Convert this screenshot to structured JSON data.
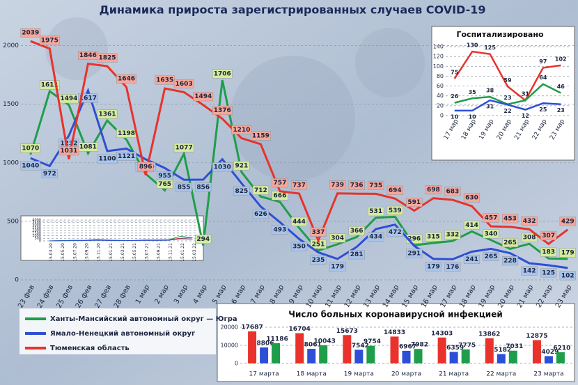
{
  "chart_data": [
    {
      "type": "line",
      "title": "Динамика прироста зарегистрированных случаев COVID-19",
      "categories": [
        "23 фев",
        "24 фев",
        "25 фев",
        "26 фев",
        "27 фев",
        "28 фев",
        "1 мар",
        "2 мар",
        "3 мар",
        "4 мар",
        "5 мар",
        "6 мар",
        "7 мар",
        "8 мар",
        "9 мар",
        "10 мар",
        "11 мар",
        "12 мар",
        "13 мар",
        "14 мар",
        "15 мар",
        "16 мар",
        "17 мар",
        "18 мар",
        "19 мар",
        "20 мар",
        "21 мар",
        "22 мар",
        "23 мар"
      ],
      "ylim": [
        0,
        2200
      ],
      "yticks": [
        0,
        500,
        1000,
        1500,
        2000
      ],
      "grid": true,
      "legend": "bottom-left",
      "data_labels": true,
      "series": [
        {
          "name": "Ханты-Мансийский автономный округ — Югра",
          "color": "#1e9e4a",
          "label_color": "#d5eb9f",
          "values": [
            1070,
            1611,
            1494,
            1081,
            1361,
            1198,
            906,
            765,
            1077,
            294,
            1706,
            921,
            712,
            666,
            444,
            251,
            304,
            366,
            531,
            539,
            296,
            315,
            332,
            414,
            340,
            265,
            308,
            183,
            179
          ]
        },
        {
          "name": "Ямало-Ненецкий автономный округ",
          "color": "#2d4fd6",
          "label_color": "#a9c4ea",
          "values": [
            1040,
            972,
            1232,
            1617,
            1100,
            1121,
            1030,
            955,
            855,
            856,
            1030,
            825,
            626,
            493,
            350,
            235,
            179,
            281,
            434,
            472,
            291,
            179,
            176,
            241,
            265,
            228,
            142,
            125,
            102
          ]
        },
        {
          "name": "Тюменская область",
          "color": "#e8322b",
          "label_color": "#f4a79b",
          "values": [
            2039,
            1975,
            1031,
            1846,
            1825,
            1646,
            896,
            1635,
            1603,
            1494,
            1376,
            1210,
            1159,
            757,
            737,
            337,
            739,
            736,
            735,
            694,
            591,
            698,
            683,
            630,
            457,
            453,
            432,
            307,
            429
          ]
        }
      ]
    },
    {
      "type": "line",
      "title": "Госпитализировано",
      "categories": [
        "17 мар",
        "18 мар",
        "19 мар",
        "20 мар",
        "21 мар",
        "22 мар",
        "23 мар"
      ],
      "ylim": [
        0,
        140
      ],
      "yticks": [
        0,
        20,
        40,
        60,
        80,
        100,
        120,
        140
      ],
      "grid": true,
      "data_labels": true,
      "series": [
        {
          "color": "#e8322b",
          "values": [
            75,
            130,
            125,
            59,
            31,
            97,
            102
          ]
        },
        {
          "color": "#1e9e4a",
          "values": [
            26,
            35,
            38,
            23,
            31,
            64,
            46
          ]
        },
        {
          "color": "#2d4fd6",
          "values": [
            10,
            10,
            31,
            22,
            12,
            25,
            23
          ]
        }
      ]
    },
    {
      "type": "line",
      "categories": [
        "15.03.20",
        "15.05.20",
        "15.07.20",
        "15.09.20",
        "15.11.20",
        "15.01.21",
        "15.03.21",
        "15.05.21",
        "15.07.21",
        "15.09.21",
        "15.11.21",
        "15.01.22",
        "15.03.22"
      ],
      "ylim": [
        0,
        4000
      ],
      "yticks": [
        0,
        500,
        1000,
        1500,
        2000,
        2500,
        3000,
        3500,
        4000
      ],
      "grid": true,
      "series": [
        {
          "color": "#e8322b",
          "values": [
            5,
            40,
            90,
            110,
            280,
            170,
            100,
            90,
            180,
            190,
            240,
            500,
            600
          ]
        },
        {
          "color": "#1e9e4a",
          "values": [
            5,
            60,
            110,
            100,
            250,
            150,
            90,
            70,
            170,
            160,
            200,
            900,
            600
          ]
        },
        {
          "color": "#2d4fd6",
          "values": [
            2,
            30,
            50,
            60,
            110,
            70,
            50,
            60,
            90,
            80,
            110,
            400,
            350
          ]
        }
      ]
    },
    {
      "type": "bar",
      "title": "Число больных коронавирусной инфекцией",
      "categories": [
        "17 марта",
        "18 марта",
        "19 марта",
        "20 марта",
        "21 марта",
        "22 марта",
        "23 марта"
      ],
      "ylim": [
        0,
        20000
      ],
      "yticks": [
        0,
        10000,
        20000
      ],
      "grid": true,
      "data_labels": true,
      "series": [
        {
          "color": "#e8322b",
          "values": [
            17687,
            16704,
            15673,
            14833,
            14303,
            13862,
            12875
          ]
        },
        {
          "color": "#2d4fd6",
          "values": [
            8806,
            8061,
            7542,
            6967,
            6359,
            5182,
            4029
          ]
        },
        {
          "color": "#1e9e4a",
          "values": [
            11186,
            10043,
            9754,
            7982,
            7775,
            7031,
            6210
          ]
        }
      ]
    }
  ]
}
